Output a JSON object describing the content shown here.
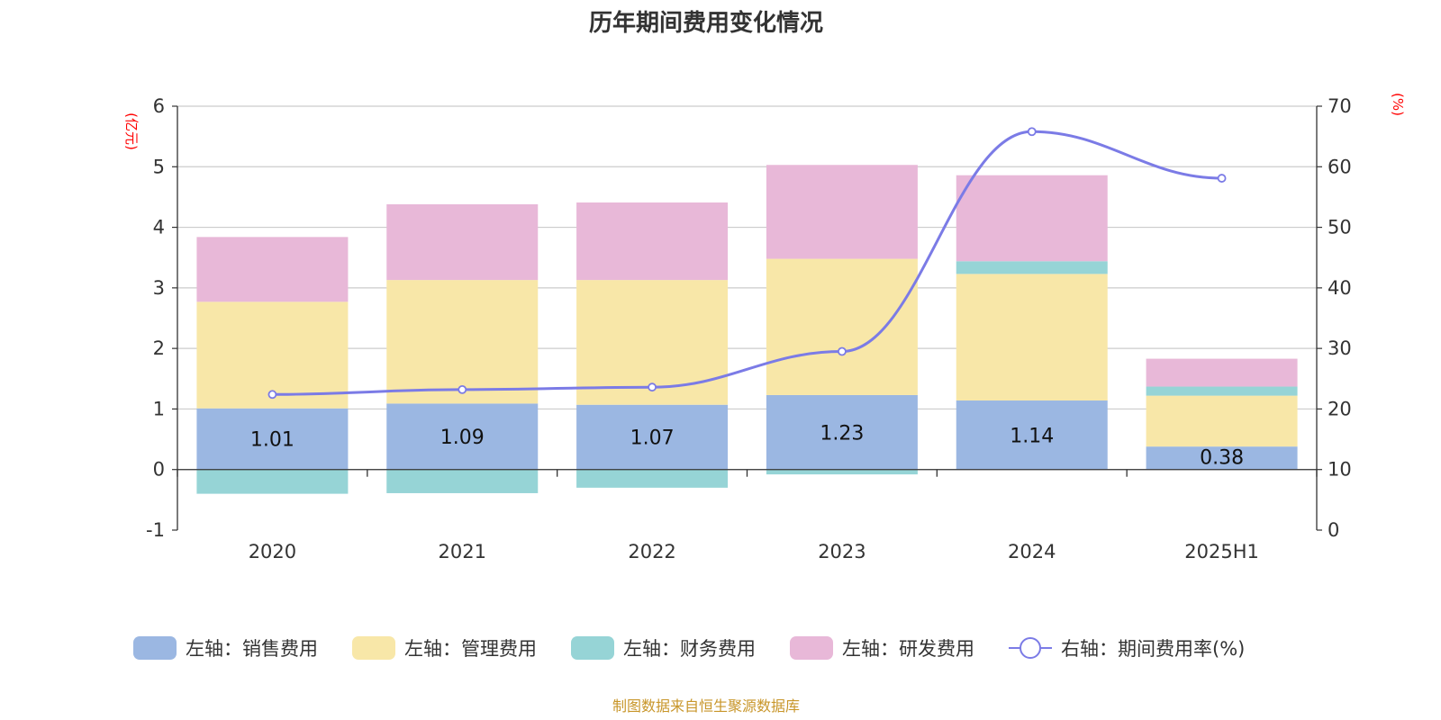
{
  "chart_data": {
    "type": "bar",
    "title": "历年期间费用变化情况",
    "left_unit": "(亿元)",
    "right_unit": "(%)",
    "categories": [
      "2020",
      "2021",
      "2022",
      "2023",
      "2024",
      "2025H1"
    ],
    "left_axis": {
      "min": -1,
      "max": 6,
      "ticks": [
        "-1",
        "0",
        "1",
        "2",
        "3",
        "4",
        "5",
        "6"
      ]
    },
    "right_axis": {
      "min": 0,
      "max": 70,
      "ticks": [
        "0",
        "10",
        "20",
        "30",
        "40",
        "50",
        "60",
        "70"
      ]
    },
    "grid": true,
    "series": [
      {
        "name": "左轴：销售费用",
        "type": "bar",
        "axis": "left",
        "color": "#9bb7e2",
        "values": [
          1.01,
          1.09,
          1.07,
          1.23,
          1.14,
          0.38
        ],
        "labels": [
          "1.01",
          "1.09",
          "1.07",
          "1.23",
          "1.14",
          "0.38"
        ]
      },
      {
        "name": "左轴：管理费用",
        "type": "bar",
        "axis": "left",
        "color": "#f8e7a8",
        "values": [
          1.76,
          2.04,
          2.06,
          2.25,
          2.09,
          0.84
        ]
      },
      {
        "name": "左轴：财务费用",
        "type": "bar",
        "axis": "left",
        "color": "#96d4d6",
        "values": [
          -0.4,
          -0.39,
          -0.3,
          -0.08,
          0.21,
          0.15
        ]
      },
      {
        "name": "左轴：研发费用",
        "type": "bar",
        "axis": "left",
        "color": "#e8b8d8",
        "values": [
          1.07,
          1.25,
          1.28,
          1.55,
          1.42,
          0.46
        ]
      },
      {
        "name": "右轴：期间费用率(%)",
        "type": "line",
        "axis": "right",
        "color": "#7b7be6",
        "values": [
          22.4,
          23.2,
          23.6,
          29.5,
          65.8,
          58.1
        ]
      }
    ],
    "legend_position": "bottom",
    "source_note": "制图数据来自恒生聚源数据库"
  }
}
